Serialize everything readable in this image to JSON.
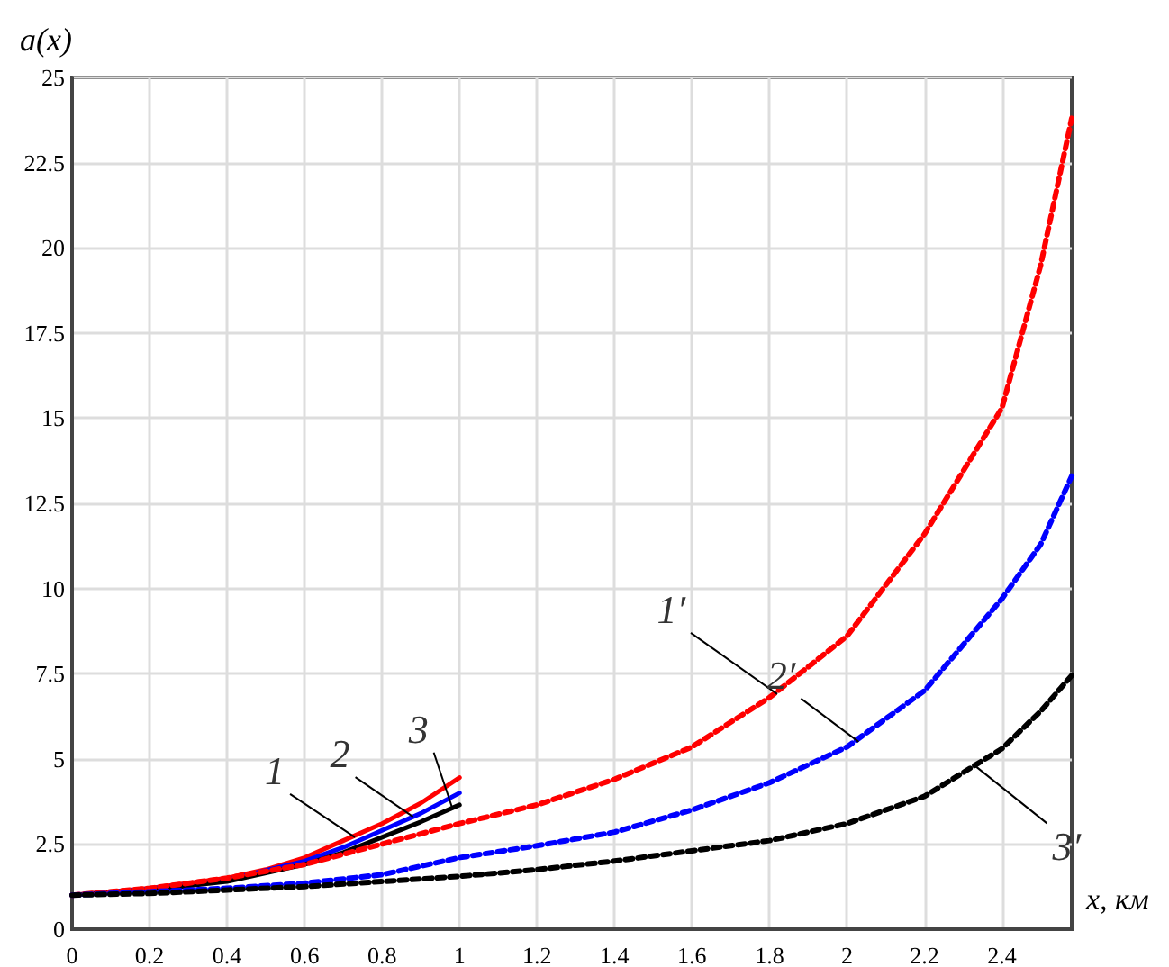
{
  "chart_data": {
    "type": "line",
    "xlabel": "x, км",
    "ylabel": "a(x)",
    "xlim": [
      0,
      2.58
    ],
    "xticks": [
      0,
      0.2,
      0.4,
      0.6,
      0.8,
      1,
      1.2,
      1.4,
      1.6,
      1.8,
      2,
      2.2,
      2.4
    ],
    "ylim": [
      0,
      25
    ],
    "yticks": [
      0,
      2.5,
      5,
      7.5,
      10,
      12.5,
      15,
      17.5,
      20,
      22.5,
      25
    ],
    "grid": true,
    "marker": "none",
    "series": [
      {
        "color": "#ff0000",
        "line_style": "solid",
        "x": [
          0,
          0.2,
          0.4,
          0.5,
          0.6,
          0.7,
          0.8,
          0.9,
          1
        ],
        "values": [
          1,
          1.2,
          1.5,
          1.75,
          2.1,
          2.6,
          3.1,
          3.7,
          4.45
        ]
      },
      {
        "color": "#0000ff",
        "line_style": "solid",
        "x": [
          0,
          0.2,
          0.4,
          0.6,
          0.7,
          0.8,
          0.9,
          1
        ],
        "values": [
          1,
          1.18,
          1.45,
          2,
          2.4,
          2.9,
          3.4,
          4
        ]
      },
      {
        "color": "#000000",
        "line_style": "solid",
        "x": [
          0,
          0.2,
          0.4,
          0.6,
          0.7,
          0.8,
          0.9,
          1
        ],
        "values": [
          1,
          1.15,
          1.4,
          1.9,
          2.25,
          2.7,
          3.15,
          3.65
        ]
      },
      {
        "color": "#ff0000",
        "line_style": "dashed",
        "x": [
          0,
          0.2,
          0.4,
          0.6,
          0.8,
          1,
          1.2,
          1.4,
          1.6,
          1.8,
          2,
          2.2,
          2.4,
          2.5,
          2.58
        ],
        "values": [
          1,
          1.2,
          1.5,
          1.9,
          2.5,
          3.1,
          3.65,
          4.4,
          5.35,
          6.8,
          8.6,
          11.6,
          15.3,
          19.5,
          23.8
        ]
      },
      {
        "color": "#0000ff",
        "line_style": "dashed",
        "x": [
          0,
          0.2,
          0.4,
          0.6,
          0.8,
          1,
          1.2,
          1.4,
          1.6,
          1.8,
          2,
          2.2,
          2.4,
          2.5,
          2.58
        ],
        "values": [
          1,
          1.1,
          1.2,
          1.35,
          1.6,
          2.1,
          2.45,
          2.85,
          3.5,
          4.3,
          5.35,
          7,
          9.7,
          11.3,
          13.3
        ]
      },
      {
        "color": "#000000",
        "line_style": "dashed",
        "x": [
          0,
          0.2,
          0.4,
          0.6,
          0.8,
          1,
          1.2,
          1.4,
          1.6,
          1.8,
          2,
          2.2,
          2.4,
          2.5,
          2.58
        ],
        "values": [
          1,
          1.05,
          1.15,
          1.25,
          1.4,
          1.55,
          1.75,
          2,
          2.3,
          2.6,
          3.1,
          3.9,
          5.3,
          6.4,
          7.45
        ]
      }
    ],
    "annotations": [
      {
        "text": "1",
        "x": 0.73,
        "y": 2.7
      },
      {
        "text": "2",
        "x": 0.88,
        "y": 3.3
      },
      {
        "text": "3",
        "x": 0.98,
        "y": 3.6
      },
      {
        "text": "1′",
        "x": 1.82,
        "y": 6.9
      },
      {
        "text": "2′",
        "x": 2.03,
        "y": 5.5
      },
      {
        "text": "3′",
        "x": 2.33,
        "y": 4.8
      }
    ]
  }
}
